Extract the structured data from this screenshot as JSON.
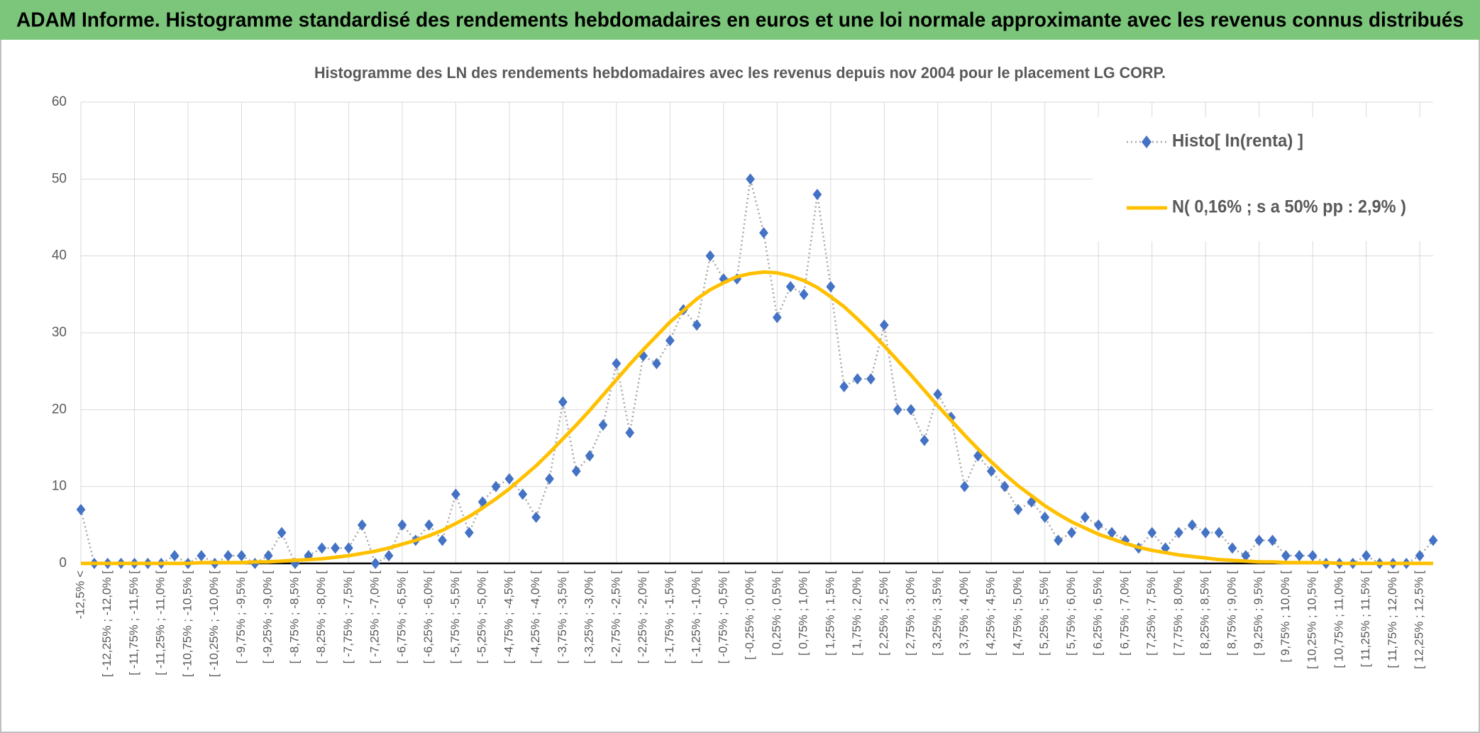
{
  "header": {
    "title": "ADAM Informe. Histogramme standardisé des rendements hebdomadaires en euros et une loi normale approximante avec les revenus connus distribués"
  },
  "chart_data": {
    "type": "line",
    "title": "Histogramme des LN des rendements hebdomadaires avec les revenus depuis nov 2004 pour le placement LG CORP.",
    "categories": [
      "-12,5% <",
      null,
      "[ -12,25% ; -12,0% [",
      null,
      "[ -11,75% ; -11,5% [",
      null,
      "[ -11,25% ; -11,0% [",
      null,
      "[ -10,75% ; -10,5% [",
      null,
      "[ -10,25% ; -10,0% [",
      null,
      "[ -9,75% ; -9,5% [",
      null,
      "[ -9,25% ; -9,0% [",
      null,
      "[ -8,75% ; -8,5% [",
      null,
      "[ -8,25% ; -8,0% [",
      null,
      "[ -7,75% ; -7,5% [",
      null,
      "[ -7,25% ; -7,0% [",
      null,
      "[ -6,75% ; -6,5% [",
      null,
      "[ -6,25% ; -6,0% [",
      null,
      "[ -5,75% ; -5,5% [",
      null,
      "[ -5,25% ; -5,0% [",
      null,
      "[ -4,75% ; -4,5% [",
      null,
      "[ -4,25% ; -4,0% [",
      null,
      "[ -3,75% ; -3,5% [",
      null,
      "[ -3,25% ; -3,0% [",
      null,
      "[ -2,75% ; -2,5% [",
      null,
      "[ -2,25% ; -2,0% [",
      null,
      "[ -1,75% ; -1,5% [",
      null,
      "[ -1,25% ; -1,0% [",
      null,
      "[ -0,75% ; -0,5% [",
      null,
      "[ -0,25% ; 0,0% [",
      null,
      "[ 0,25% ; 0,5% [",
      null,
      "[ 0,75% ; 1,0% [",
      null,
      "[ 1,25% ; 1,5% [",
      null,
      "[ 1,75% ; 2,0% [",
      null,
      "[ 2,25% ; 2,5% [",
      null,
      "[ 2,75% ; 3,0% [",
      null,
      "[ 3,25% ; 3,5% [",
      null,
      "[ 3,75% ; 4,0% [",
      null,
      "[ 4,25% ; 4,5% [",
      null,
      "[ 4,75% ; 5,0% [",
      null,
      "[ 5,25% ; 5,5% [",
      null,
      "[ 5,75% ; 6,0% [",
      null,
      "[ 6,25% ; 6,5% [",
      null,
      "[ 6,75% ; 7,0% [",
      null,
      "[ 7,25% ; 7,5% [",
      null,
      "[ 7,75% ; 8,0% [",
      null,
      "[ 8,25% ; 8,5% [",
      null,
      "[ 8,75% ; 9,0% [",
      null,
      "[ 9,25% ; 9,5% [",
      null,
      "[ 9,75% ; 10,0% [",
      null,
      "[ 10,25% ; 10,5% [",
      null,
      "[ 10,75% ; 11,0% [",
      null,
      "[ 11,25% ; 11,5% [",
      null,
      "[ 11,75% ; 12,0% [",
      null,
      "[ 12,25% ; 12,5% [",
      null
    ],
    "series": [
      {
        "name": "Histo[ ln(renta) ]",
        "color": "#4472c4",
        "line_color": "#a6a6a6",
        "marker": "diamond",
        "line_style": "dotted",
        "values": [
          7,
          0,
          0,
          0,
          0,
          0,
          0,
          1,
          0,
          1,
          0,
          1,
          1,
          0,
          1,
          4,
          0,
          1,
          2,
          2,
          2,
          5,
          0,
          1,
          5,
          3,
          5,
          3,
          9,
          4,
          8,
          10,
          11,
          9,
          6,
          11,
          21,
          12,
          14,
          18,
          26,
          17,
          27,
          26,
          29,
          33,
          31,
          40,
          37,
          37,
          50,
          43,
          32,
          36,
          35,
          48,
          36,
          23,
          24,
          24,
          31,
          20,
          20,
          16,
          22,
          19,
          10,
          14,
          12,
          10,
          7,
          8,
          6,
          3,
          4,
          6,
          5,
          4,
          3,
          2,
          4,
          2,
          4,
          5,
          4,
          4,
          2,
          1,
          3,
          3,
          1,
          1,
          1,
          0,
          0,
          0,
          1,
          0,
          0,
          0,
          1,
          3
        ]
      },
      {
        "name": "N( 0,16% ; s a 50% pp : 2,9% )",
        "color": "#ffc000",
        "marker": "none",
        "line_style": "solid",
        "values": [
          0,
          0,
          0,
          0,
          0,
          0,
          0,
          0,
          0,
          0.1,
          0.1,
          0.1,
          0.1,
          0.2,
          0.2,
          0.3,
          0.4,
          0.5,
          0.6,
          0.8,
          1,
          1.3,
          1.6,
          2,
          2.5,
          3,
          3.6,
          4.3,
          5.2,
          6.1,
          7.2,
          8.4,
          9.7,
          11.2,
          12.7,
          14.4,
          16.2,
          18,
          19.9,
          21.9,
          23.9,
          25.9,
          27.8,
          29.6,
          31.4,
          32.9,
          34.4,
          35.6,
          36.5,
          37.3,
          37.7,
          37.9,
          37.8,
          37.4,
          36.8,
          35.9,
          34.7,
          33.4,
          31.8,
          30.1,
          28.3,
          26.4,
          24.5,
          22.5,
          20.5,
          18.6,
          16.7,
          14.9,
          13.2,
          11.6,
          10.1,
          8.8,
          7.5,
          6.4,
          5.4,
          4.6,
          3.8,
          3.2,
          2.6,
          2.1,
          1.7,
          1.4,
          1.1,
          0.9,
          0.7,
          0.5,
          0.4,
          0.3,
          0.2,
          0.2,
          0.1,
          0.1,
          0.1,
          0.1,
          0,
          0,
          0,
          0,
          0,
          0,
          0,
          0
        ]
      }
    ],
    "ylim": [
      0,
      60
    ],
    "yticks": [
      0,
      10,
      20,
      30,
      40,
      50,
      60
    ],
    "grid": true,
    "legend": "top-right"
  }
}
